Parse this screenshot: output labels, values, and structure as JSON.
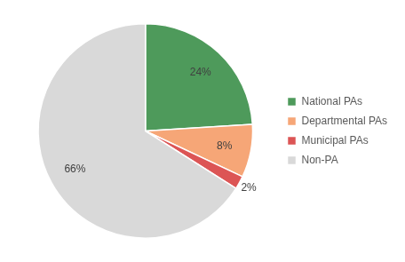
{
  "chart_data": {
    "type": "pie",
    "categories": [
      "National PAs",
      "Departmental PAs",
      "Municipal PAs",
      "Non-PA"
    ],
    "values": [
      24,
      8,
      2,
      66
    ],
    "value_labels": [
      "24%",
      "8%",
      "2%",
      "66%"
    ],
    "colors": [
      "#4e9a5b",
      "#f6a677",
      "#dc5555",
      "#d9d9d9"
    ],
    "legend": "right",
    "data_labels": true
  }
}
